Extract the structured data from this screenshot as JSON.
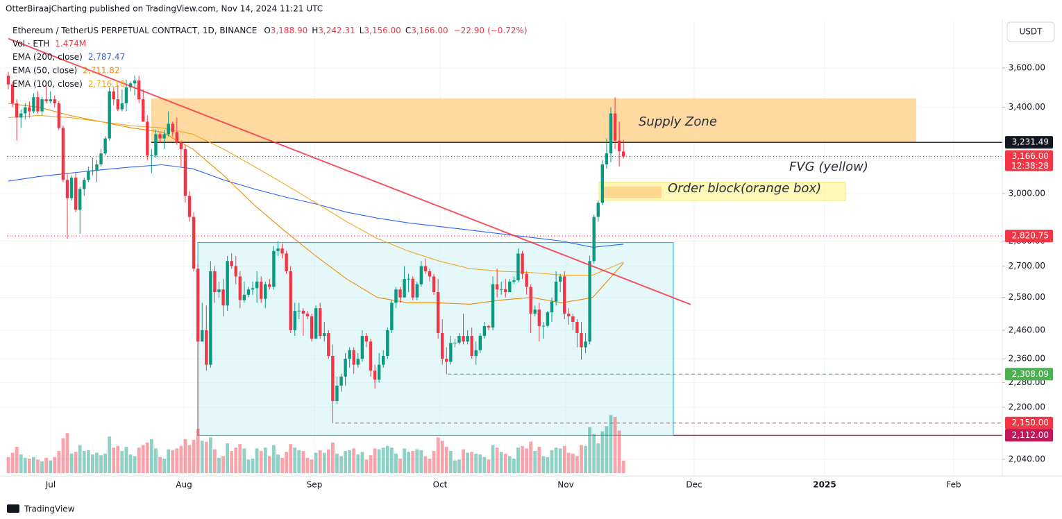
{
  "header": {
    "publisher": "OtterBiraajCharting published on TradingView.com, Nov 14, 2024 11:21 UTC"
  },
  "footer": {
    "brand": "TradingView"
  },
  "chart_data": {
    "type": "candlestick",
    "title": "Ethereum / TetherUS PERPETUAL CONTRACT, 1D, BINANCE",
    "quote": [
      {
        "key": "O",
        "value": 3188.9,
        "label": "3,188.90"
      },
      {
        "key": "H",
        "value": 3242.31,
        "label": "3,242.31"
      },
      {
        "key": "L",
        "value": 3156,
        "label": "3,156.00"
      },
      {
        "key": "C",
        "value": 3166,
        "label": "3,166.00"
      }
    ],
    "change": {
      "value": -22.9,
      "label": "−22.90"
    },
    "change_pct": {
      "value": -0.72,
      "label": "(−0.72%)"
    },
    "volume_legend": {
      "name": "Vol · ETH",
      "value": 1.474,
      "label": "1.474M"
    },
    "currency": "USDT",
    "x_labels": [
      "Jul",
      "Aug",
      "Sep",
      "Oct",
      "Nov",
      "Dec",
      "2025",
      "Feb"
    ],
    "up_color": "#089981",
    "down_color": "#f23645",
    "log_scale": true,
    "grid": true,
    "ylim": [
      1993,
      3855
    ],
    "yticks": [
      {
        "value": 3600,
        "label": "3,600.00"
      },
      {
        "value": 3400,
        "label": "3,400.00"
      },
      {
        "value": 3000,
        "label": "3,000.00"
      },
      {
        "value": 2800,
        "label": "2,800.00"
      },
      {
        "value": 2700,
        "label": "2,700.00"
      },
      {
        "value": 2580,
        "label": "2,580.00"
      },
      {
        "value": 2460,
        "label": "2,460.00"
      },
      {
        "value": 2360,
        "label": "2,360.00"
      },
      {
        "value": 2280,
        "label": "2,280.00"
      },
      {
        "value": 2200,
        "label": "2,200.00"
      },
      {
        "value": 2040,
        "label": "2,040.00"
      }
    ],
    "ohlc": [
      [
        3560,
        3580,
        3490,
        3515
      ],
      [
        3515,
        3530,
        3400,
        3420
      ],
      [
        3420,
        3440,
        3240,
        3350
      ],
      [
        3350,
        3390,
        3300,
        3370
      ],
      [
        3370,
        3420,
        3340,
        3400
      ],
      [
        3400,
        3430,
        3350,
        3380
      ],
      [
        3380,
        3470,
        3370,
        3450
      ],
      [
        3450,
        3480,
        3370,
        3380
      ],
      [
        3380,
        3450,
        3360,
        3440
      ],
      [
        3440,
        3520,
        3420,
        3430
      ],
      [
        3430,
        3480,
        3420,
        3440
      ],
      [
        3440,
        3460,
        3400,
        3420
      ],
      [
        3420,
        3430,
        3290,
        3300
      ],
      [
        3300,
        3310,
        3050,
        3060
      ],
      [
        3060,
        3090,
        2810,
        2980
      ],
      [
        2980,
        3080,
        2970,
        3070
      ],
      [
        3070,
        3090,
        2920,
        2930
      ],
      [
        2930,
        3030,
        2830,
        3020
      ],
      [
        3020,
        3070,
        2990,
        3060
      ],
      [
        3060,
        3120,
        3050,
        3100
      ],
      [
        3100,
        3160,
        3080,
        3101
      ],
      [
        3101,
        3150,
        3050,
        3130
      ],
      [
        3130,
        3200,
        3120,
        3180
      ],
      [
        3180,
        3260,
        3170,
        3250
      ],
      [
        3250,
        3500,
        3240,
        3480
      ],
      [
        3480,
        3500,
        3410,
        3440
      ],
      [
        3440,
        3510,
        3380,
        3390
      ],
      [
        3390,
        3490,
        3380,
        3420
      ],
      [
        3420,
        3540,
        3380,
        3500
      ],
      [
        3500,
        3530,
        3480,
        3520
      ],
      [
        3520,
        3560,
        3460,
        3535
      ],
      [
        3535,
        3560,
        3420,
        3440
      ],
      [
        3440,
        3490,
        3330,
        3330
      ],
      [
        3330,
        3360,
        3150,
        3170
      ],
      [
        3170,
        3200,
        3090,
        3171
      ],
      [
        3171,
        3290,
        3160,
        3270
      ],
      [
        3270,
        3280,
        3230,
        3250
      ],
      [
        3250,
        3290,
        3200,
        3270
      ],
      [
        3270,
        3380,
        3260,
        3320
      ],
      [
        3320,
        3330,
        3260,
        3280
      ],
      [
        3280,
        3350,
        3220,
        3230
      ],
      [
        3230,
        3240,
        3120,
        3200
      ],
      [
        3200,
        3220,
        2960,
        2990
      ],
      [
        2990,
        3010,
        2880,
        2900
      ],
      [
        2900,
        2920,
        2680,
        2690
      ],
      [
        2690,
        2710,
        2112,
        2420
      ],
      [
        2420,
        2560,
        2420,
        2460
      ],
      [
        2460,
        2550,
        2320,
        2340
      ],
      [
        2340,
        2720,
        2330,
        2680
      ],
      [
        2680,
        2700,
        2560,
        2600
      ],
      [
        2600,
        2640,
        2580,
        2610
      ],
      [
        2610,
        2650,
        2510,
        2550
      ],
      [
        2550,
        2740,
        2530,
        2720
      ],
      [
        2720,
        2750,
        2690,
        2700
      ],
      [
        2700,
        2740,
        2630,
        2660
      ],
      [
        2660,
        2680,
        2540,
        2570
      ],
      [
        2570,
        2640,
        2560,
        2590
      ],
      [
        2590,
        2620,
        2580,
        2610
      ],
      [
        2610,
        2640,
        2590,
        2615
      ],
      [
        2615,
        2680,
        2560,
        2640
      ],
      [
        2640,
        2660,
        2560,
        2575
      ],
      [
        2575,
        2640,
        2540,
        2630
      ],
      [
        2630,
        2650,
        2610,
        2620
      ],
      [
        2620,
        2780,
        2610,
        2760
      ],
      [
        2760,
        2800,
        2740,
        2770
      ],
      [
        2770,
        2790,
        2730,
        2750
      ],
      [
        2750,
        2760,
        2670,
        2680
      ],
      [
        2680,
        2700,
        2450,
        2460
      ],
      [
        2460,
        2560,
        2440,
        2530
      ],
      [
        2530,
        2560,
        2500,
        2531
      ],
      [
        2531,
        2540,
        2440,
        2520
      ],
      [
        2520,
        2530,
        2500,
        2510
      ],
      [
        2510,
        2520,
        2420,
        2430
      ],
      [
        2430,
        2550,
        2430,
        2540
      ],
      [
        2540,
        2560,
        2430,
        2440
      ],
      [
        2440,
        2490,
        2420,
        2450
      ],
      [
        2450,
        2460,
        2360,
        2370
      ],
      [
        2370,
        2410,
        2150,
        2220
      ],
      [
        2220,
        2300,
        2210,
        2270
      ],
      [
        2270,
        2310,
        2250,
        2300
      ],
      [
        2300,
        2380,
        2270,
        2360
      ],
      [
        2360,
        2400,
        2330,
        2390
      ],
      [
        2390,
        2400,
        2310,
        2340
      ],
      [
        2340,
        2380,
        2330,
        2360
      ],
      [
        2360,
        2460,
        2350,
        2440
      ],
      [
        2440,
        2450,
        2400,
        2420
      ],
      [
        2420,
        2430,
        2300,
        2320
      ],
      [
        2320,
        2340,
        2260,
        2290
      ],
      [
        2290,
        2380,
        2280,
        2340
      ],
      [
        2340,
        2390,
        2330,
        2370
      ],
      [
        2370,
        2470,
        2360,
        2460
      ],
      [
        2460,
        2570,
        2450,
        2560
      ],
      [
        2560,
        2620,
        2540,
        2610
      ],
      [
        2610,
        2620,
        2560,
        2580
      ],
      [
        2580,
        2700,
        2580,
        2650
      ],
      [
        2650,
        2670,
        2600,
        2651
      ],
      [
        2651,
        2660,
        2570,
        2580
      ],
      [
        2580,
        2640,
        2570,
        2630
      ],
      [
        2630,
        2720,
        2620,
        2700
      ],
      [
        2700,
        2730,
        2670,
        2680
      ],
      [
        2680,
        2690,
        2640,
        2660
      ],
      [
        2660,
        2670,
        2590,
        2600
      ],
      [
        2600,
        2650,
        2430,
        2450
      ],
      [
        2450,
        2500,
        2340,
        2360
      ],
      [
        2360,
        2400,
        2308,
        2350
      ],
      [
        2350,
        2440,
        2340,
        2415
      ],
      [
        2415,
        2430,
        2400,
        2416
      ],
      [
        2416,
        2450,
        2410,
        2440
      ],
      [
        2440,
        2520,
        2410,
        2420
      ],
      [
        2420,
        2460,
        2410,
        2440
      ],
      [
        2440,
        2470,
        2360,
        2370
      ],
      [
        2370,
        2420,
        2340,
        2390
      ],
      [
        2390,
        2450,
        2380,
        2440
      ],
      [
        2440,
        2490,
        2430,
        2475
      ],
      [
        2475,
        2480,
        2460,
        2470
      ],
      [
        2470,
        2660,
        2460,
        2630
      ],
      [
        2630,
        2690,
        2580,
        2610
      ],
      [
        2610,
        2640,
        2590,
        2611
      ],
      [
        2611,
        2650,
        2580,
        2600
      ],
      [
        2600,
        2650,
        2600,
        2640
      ],
      [
        2640,
        2660,
        2630,
        2645
      ],
      [
        2645,
        2770,
        2640,
        2750
      ],
      [
        2750,
        2760,
        2650,
        2670
      ],
      [
        2670,
        2680,
        2590,
        2620
      ],
      [
        2620,
        2630,
        2450,
        2520
      ],
      [
        2520,
        2550,
        2510,
        2535
      ],
      [
        2535,
        2560,
        2420,
        2475
      ],
      [
        2475,
        2490,
        2430,
        2476
      ],
      [
        2476,
        2530,
        2470,
        2525
      ],
      [
        2525,
        2580,
        2490,
        2565
      ],
      [
        2565,
        2680,
        2550,
        2640
      ],
      [
        2640,
        2670,
        2600,
        2660
      ],
      [
        2660,
        2680,
        2500,
        2520
      ],
      [
        2520,
        2540,
        2480,
        2510
      ],
      [
        2510,
        2520,
        2460,
        2490
      ],
      [
        2490,
        2500,
        2400,
        2450
      ],
      [
        2450,
        2490,
        2357,
        2400
      ],
      [
        2400,
        2450,
        2380,
        2420
      ],
      [
        2420,
        2740,
        2410,
        2720
      ],
      [
        2720,
        2910,
        2710,
        2900
      ],
      [
        2900,
        2970,
        2880,
        2960
      ],
      [
        2960,
        3150,
        2950,
        3130
      ],
      [
        3130,
        3250,
        3110,
        3180
      ],
      [
        3180,
        3400,
        3140,
        3370
      ],
      [
        3370,
        3450,
        3200,
        3240
      ],
      [
        3240,
        3330,
        3120,
        3190
      ],
      [
        3188.9,
        3242.31,
        3156,
        3166
      ]
    ],
    "volume": [
      1.9,
      2.4,
      3.1,
      2.2,
      1.8,
      1.7,
      1.9,
      1.6,
      1.4,
      1.8,
      1.5,
      1.9,
      2.6,
      4.1,
      4.7,
      2.3,
      2.5,
      3.3,
      2.6,
      2.7,
      2.2,
      2.4,
      2.1,
      2.3,
      4.3,
      3.0,
      3.2,
      2.6,
      3.1,
      2.2,
      2.0,
      3.0,
      3.3,
      3.6,
      4.0,
      2.9,
      1.9,
      1.7,
      2.8,
      2.7,
      2.9,
      3.2,
      4.0,
      3.3,
      3.9,
      5.2,
      3.8,
      3.7,
      4.2,
      2.8,
      1.8,
      2.0,
      3.5,
      2.6,
      3.0,
      3.4,
      2.9,
      1.6,
      1.7,
      2.9,
      2.6,
      3.0,
      2.0,
      3.3,
      2.2,
      1.8,
      2.5,
      3.4,
      3.0,
      2.7,
      2.6,
      1.8,
      1.6,
      2.4,
      2.7,
      2.4,
      2.8,
      3.6,
      2.3,
      2.0,
      2.6,
      2.7,
      2.9,
      2.2,
      2.5,
      1.6,
      2.1,
      2.9,
      2.8,
      3.0,
      3.2,
      3.0,
      2.3,
      1.7,
      2.9,
      2.5,
      2.6,
      2.8,
      2.7,
      2.0,
      1.7,
      2.6,
      4.2,
      3.8,
      3.1,
      2.6,
      1.5,
      1.6,
      2.8,
      2.4,
      2.5,
      2.3,
      2.2,
      1.9,
      1.6,
      3.3,
      3.0,
      2.5,
      2.3,
      2.0,
      1.7,
      3.0,
      3.2,
      2.9,
      3.7,
      2.6,
      3.1,
      2.0,
      1.9,
      2.7,
      3.0,
      2.9,
      3.2,
      2.4,
      2.3,
      2.0,
      3.3,
      3.2,
      5.4,
      4.6,
      3.5,
      4.9,
      5.5,
      6.8,
      6.6,
      5.0,
      1.474
    ],
    "indicators": [
      {
        "name": "EMA (200, close)",
        "color": "#2962ff",
        "last": {
          "value": 2787.47,
          "label": "2,787.47"
        },
        "values": [
          3055,
          3075,
          3090,
          3105,
          3118,
          3128,
          3110,
          3060,
          3020,
          2985,
          2955,
          2920,
          2895,
          2875,
          2860,
          2845,
          2830,
          2815,
          2800,
          2775,
          2787.47
        ]
      },
      {
        "name": "EMA (50, close)",
        "color": "#ef8a00",
        "last": {
          "value": 2711.82,
          "label": "2,711.82"
        },
        "values": [
          3420,
          3400,
          3360,
          3330,
          3300,
          3280,
          3200,
          3080,
          2950,
          2840,
          2740,
          2650,
          2580,
          2560,
          2560,
          2555,
          2570,
          2580,
          2560,
          2580,
          2711.82
        ]
      },
      {
        "name": "EMA (100, close)",
        "color": "#f5a623",
        "last": {
          "value": 2716.1,
          "label": "2,716.10"
        },
        "values": [
          3350,
          3360,
          3350,
          3330,
          3310,
          3300,
          3270,
          3200,
          3120,
          3040,
          2960,
          2880,
          2810,
          2760,
          2720,
          2690,
          2680,
          2675,
          2665,
          2665,
          2716.1
        ]
      }
    ],
    "trendline": {
      "values": [
        3757,
        2554
      ],
      "color": "#f23645"
    },
    "zones": {
      "supply": {
        "label": "Supply Zone",
        "top": 3444,
        "bottom": 3231.49,
        "color": "#ffcc80"
      },
      "fvg": {
        "label": "FVG (yellow)",
        "top": 3050,
        "bottom": 2970,
        "color": "#fff59d"
      },
      "order_block": {
        "label": "Order block(orange box)",
        "top": 3031,
        "bottom": 2980,
        "color": "#ffcc80"
      },
      "range": {
        "top": 2794,
        "bottom": 2112,
        "color": "#b2ebf2"
      }
    },
    "levels": [
      {
        "value": 3231.49,
        "label": "3,231.49",
        "color": "#131722",
        "style": "solid"
      },
      {
        "value": 3166,
        "label": "3,166.00",
        "color": "#f23645",
        "style": "dotted",
        "countdown": "12:38:28"
      },
      {
        "value": 2820.75,
        "label": "2,820.75",
        "color": "#f23645",
        "style": "dotted"
      },
      {
        "value": 2308.09,
        "label": "2,308.09",
        "color": "#4caf50",
        "style": "dashed"
      },
      {
        "value": 2150,
        "label": "2,150.00",
        "color": "#f23645",
        "style": "dashed"
      },
      {
        "value": 2112,
        "label": "2,112.00",
        "color": "#c2185b",
        "style": "solid"
      }
    ]
  }
}
